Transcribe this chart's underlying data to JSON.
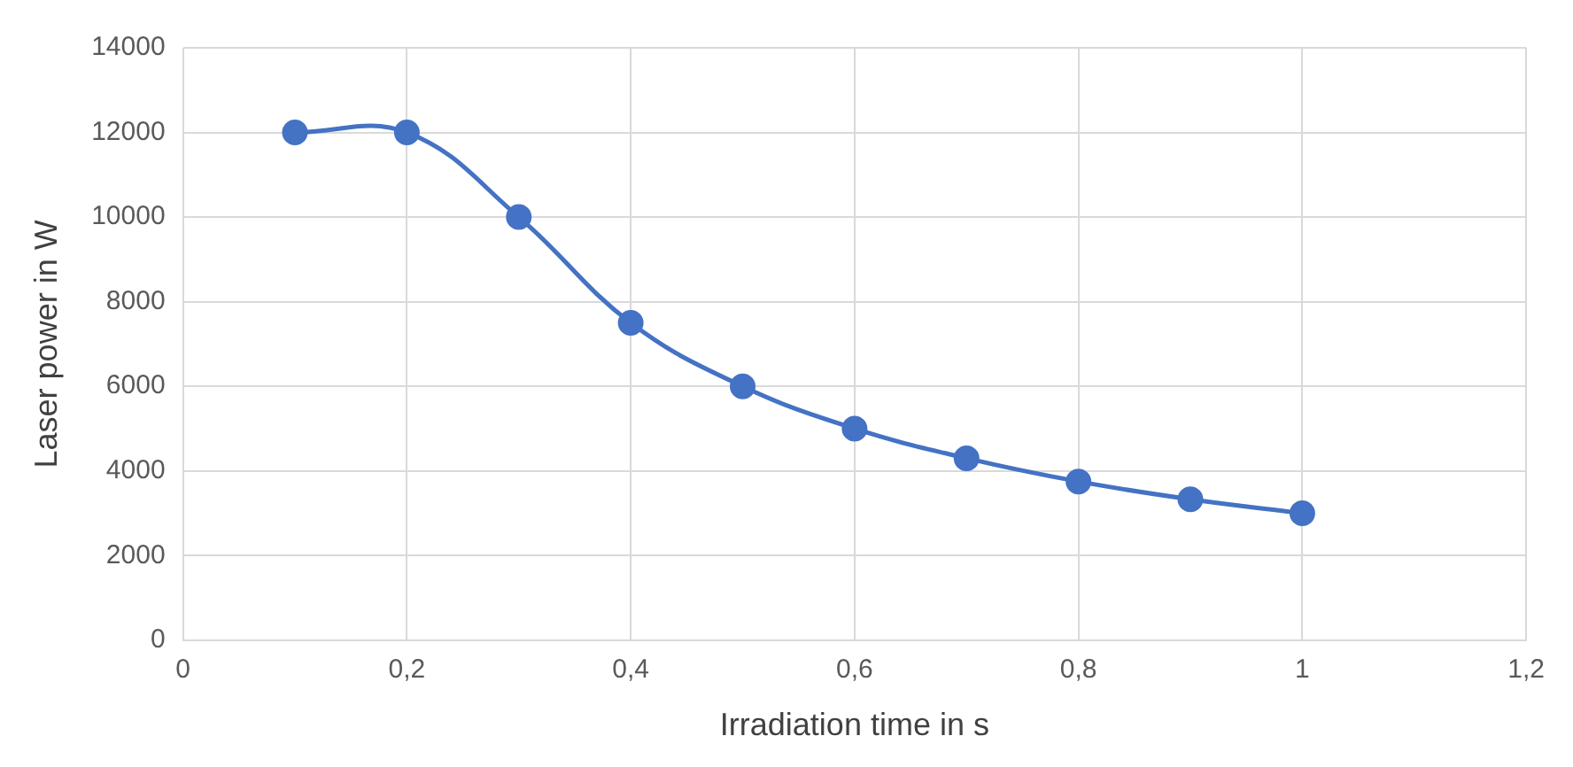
{
  "chart_data": {
    "type": "line",
    "xlabel": "Irradiation time in s",
    "ylabel": "Laser power in W",
    "x": [
      0.1,
      0.2,
      0.3,
      0.4,
      0.5,
      0.6,
      0.7,
      0.8,
      0.9,
      1
    ],
    "series": [
      {
        "color": "#4472c4",
        "values": [
          12000,
          12000,
          10000,
          7500,
          6000,
          5000,
          4300,
          3750,
          3330,
          3000
        ]
      }
    ],
    "xlim": [
      0,
      1.2
    ],
    "xticks": [
      0,
      {
        "value": 0.2,
        "label": "0,2"
      },
      {
        "value": 0.4,
        "label": "0,4"
      },
      {
        "value": 0.6,
        "label": "0,6"
      },
      {
        "value": 0.8,
        "label": "0,8"
      },
      1,
      {
        "value": 1.2,
        "label": "1,2"
      }
    ],
    "ylim": [
      0,
      14000
    ],
    "yticks": [
      0,
      2000,
      4000,
      6000,
      8000,
      10000,
      12000,
      14000
    ],
    "grid": true,
    "marker": "circle",
    "line_style": "solid",
    "legend": false
  }
}
